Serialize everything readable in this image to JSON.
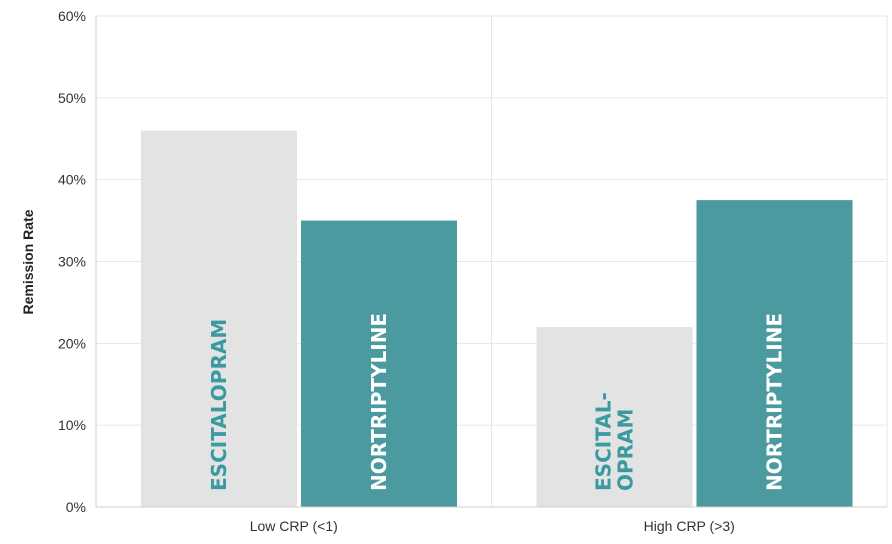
{
  "chart_data": {
    "type": "bar",
    "title": "",
    "xlabel": "",
    "ylabel": "Remission Rate",
    "ylim": [
      0,
      60
    ],
    "yticks": [
      "0%",
      "10%",
      "20%",
      "30%",
      "40%",
      "50%",
      "60%"
    ],
    "categories": [
      "Low CRP (<1)",
      "High CRP (>3)"
    ],
    "grid": true,
    "legend": "none",
    "series": [
      {
        "name": "Escitalopram",
        "color": "#e3e3e4",
        "label_color": "#3a9aa0",
        "values": [
          46,
          22
        ],
        "bar_labels": [
          [
            "ESCITALOPRAM"
          ],
          [
            "ESCITAL-",
            "OPRAM"
          ]
        ]
      },
      {
        "name": "Nortriptyline",
        "color": "#4a9aa0",
        "label_color": "#ffffff",
        "values": [
          35,
          37.5
        ],
        "bar_labels": [
          [
            "NORTRIPTYLINE"
          ],
          [
            "NORTRIPTYLINE"
          ]
        ]
      }
    ]
  }
}
